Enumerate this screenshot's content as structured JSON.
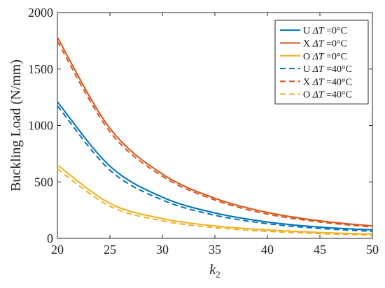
{
  "chart_data": {
    "type": "line",
    "xlabel_base": "k",
    "xlabel_sub": "2",
    "ylabel": "Buckling Load (N/mm)",
    "xlim": [
      20,
      50
    ],
    "ylim": [
      0,
      2000
    ],
    "x_ticks": [
      "20",
      "25",
      "30",
      "35",
      "40",
      "45",
      "50"
    ],
    "y_ticks": [
      "0",
      "500",
      "1000",
      "1500",
      "2000"
    ],
    "grid": false,
    "legend_position": "top-right",
    "x": [
      20,
      25,
      30,
      35,
      40,
      45,
      50
    ],
    "series": [
      {
        "name": "U ΔT =0°C",
        "label_parts": [
          "U ",
          "ΔT",
          " =0°C"
        ],
        "color": "#0072BD",
        "dash": "solid",
        "values": [
          1210,
          640,
          365,
          225,
          145,
          100,
          75
        ]
      },
      {
        "name": "X ΔT =0°C",
        "label_parts": [
          "X ",
          "ΔT",
          " =0°C"
        ],
        "color": "#D95319",
        "dash": "solid",
        "values": [
          1780,
          975,
          570,
          355,
          230,
          155,
          110
        ]
      },
      {
        "name": "O ΔT =0°C",
        "label_parts": [
          "O ",
          "ΔT",
          " =0°C"
        ],
        "color": "#EDB120",
        "dash": "solid",
        "values": [
          650,
          310,
          175,
          110,
          75,
          52,
          38
        ]
      },
      {
        "name": "U ΔT =40°C",
        "label_parts": [
          "U ",
          "ΔT",
          " =40°C"
        ],
        "color": "#0072BD",
        "dash": "dashed",
        "values": [
          1175,
          605,
          340,
          205,
          130,
          88,
          62
        ]
      },
      {
        "name": "X ΔT =40°C",
        "label_parts": [
          "X ",
          "ΔT",
          " =40°C"
        ],
        "color": "#D95319",
        "dash": "dashed",
        "values": [
          1745,
          945,
          550,
          340,
          215,
          145,
          100
        ]
      },
      {
        "name": "O ΔT =40°C",
        "label_parts": [
          "O ",
          "ΔT",
          " =40°C"
        ],
        "color": "#EDB120",
        "dash": "dashed",
        "values": [
          615,
          285,
          155,
          95,
          62,
          42,
          28
        ]
      }
    ]
  }
}
